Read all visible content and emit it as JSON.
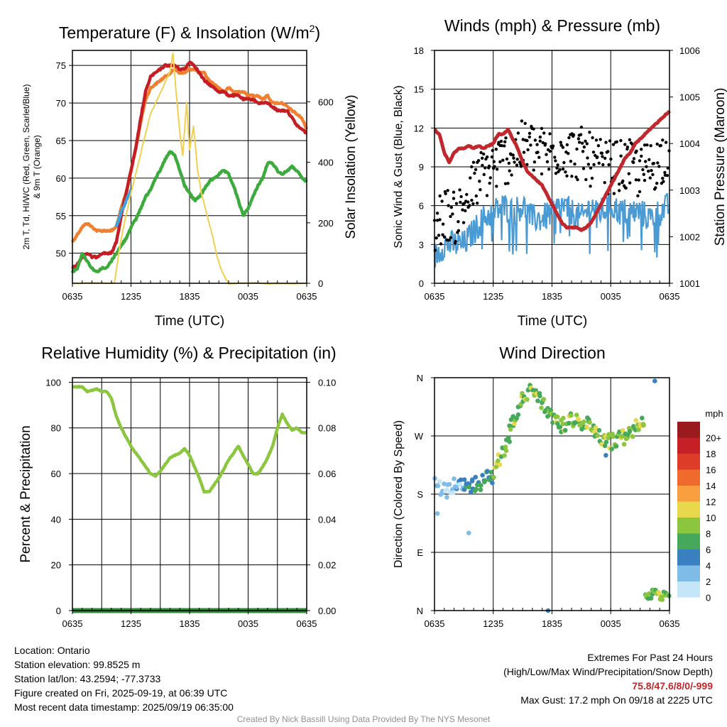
{
  "chart_data": [
    {
      "type": "line",
      "title": "Temperature (F) & Insolation (W/m²)",
      "title_main": "Temperature (F) & Insolation (W/m",
      "title_sup": "2",
      "title_end": ")",
      "xlabel": "Time (UTC)",
      "ylabel_left_line1": "2m T, Td, HI/WC (Red, Green, Scarlet/Blue)",
      "ylabel_left_line2": "& 9m T (Orange)",
      "ylabel_right": "Solar Insolation (Yellow)",
      "x_ticks": [
        "0635",
        "1235",
        "1835",
        "0035",
        "0635"
      ],
      "ylim_left": [
        46,
        77
      ],
      "y_ticks_left": [
        50,
        55,
        60,
        65,
        70,
        75
      ],
      "ylim_right": [
        0,
        770
      ],
      "y_ticks_right": [
        0,
        200,
        400,
        600
      ],
      "series": [
        {
          "color": "#f08030",
          "axis": "left",
          "x": [
            0,
            0.5,
            1,
            1.5,
            2,
            2.5,
            3,
            3.5,
            4,
            4.5,
            5,
            5.5,
            6,
            6.5,
            7,
            7.5,
            8,
            8.5,
            9,
            9.5,
            10,
            10.5,
            11,
            11.5,
            12,
            12.5,
            13,
            13.5,
            14,
            14.5,
            15,
            15.5,
            16,
            16.5,
            17,
            17.5,
            18,
            18.5,
            19,
            19.5,
            20,
            20.5,
            21,
            21.5,
            22,
            22.5,
            23,
            23.5,
            24
          ],
          "y": [
            51.5,
            52.5,
            53.5,
            54,
            53.5,
            53,
            53,
            53,
            53,
            53.5,
            56,
            58,
            61,
            64,
            67.5,
            70.5,
            72,
            72.5,
            73,
            73.5,
            74,
            74.5,
            74,
            74,
            74.5,
            74.5,
            74,
            74,
            73,
            72.5,
            72,
            71.5,
            72,
            71.5,
            71.5,
            71.5,
            71,
            71,
            71,
            70.5,
            71,
            70,
            70,
            70,
            69.5,
            69,
            68.5,
            68,
            66.5
          ]
        },
        {
          "color": "#c41e24",
          "axis": "left",
          "x": [
            0,
            0.5,
            1,
            1.5,
            2,
            2.5,
            3,
            3.5,
            4,
            4.5,
            5,
            5.5,
            6,
            6.5,
            7,
            7.5,
            8,
            8.5,
            9,
            9.5,
            10,
            10.5,
            11,
            11.5,
            12,
            12.5,
            13,
            13.5,
            14,
            14.5,
            15,
            15.5,
            16,
            16.5,
            17,
            17.5,
            18,
            18.5,
            19,
            19.5,
            20,
            20.5,
            21,
            21.5,
            22,
            22.5,
            23,
            23.5,
            24
          ],
          "y": [
            48,
            48.5,
            49.5,
            50,
            49.5,
            49.5,
            50,
            50,
            50,
            51.5,
            55,
            58,
            61,
            64,
            68,
            71.5,
            73.5,
            74,
            74.5,
            75,
            75,
            75,
            74.5,
            74.5,
            75.5,
            75,
            74,
            73,
            72.5,
            72,
            71.5,
            71.5,
            71,
            71,
            71,
            70.5,
            70.5,
            70.5,
            70,
            70,
            70,
            69.5,
            69,
            69,
            69,
            68,
            67,
            66.5,
            66
          ]
        },
        {
          "color": "#3f9fd8",
          "axis": "left",
          "x": [
            4.5,
            5,
            5.5,
            6
          ],
          "y": [
            53.5,
            55.5,
            57,
            58.5
          ]
        },
        {
          "color": "#3caa3c",
          "axis": "left",
          "x": [
            0,
            0.5,
            1,
            1.5,
            2,
            2.5,
            3,
            3.5,
            4,
            4.5,
            5,
            5.5,
            6,
            6.5,
            7,
            7.5,
            8,
            8.5,
            9,
            9.5,
            10,
            10.5,
            11,
            11.5,
            12,
            12.5,
            13,
            13.5,
            14,
            14.5,
            15,
            15.5,
            16,
            16.5,
            17,
            17.5,
            18,
            18.5,
            19,
            19.5,
            20,
            20.5,
            21,
            21.5,
            22,
            22.5,
            23,
            23.5,
            24
          ],
          "y": [
            47.5,
            48,
            50,
            49,
            48,
            47.5,
            48,
            48,
            49,
            50,
            51,
            52,
            53.5,
            54.5,
            56,
            57.5,
            58.5,
            60,
            61,
            62.5,
            63.5,
            63,
            61,
            59,
            58,
            57,
            57.5,
            58.5,
            59.5,
            60,
            60.5,
            61,
            60.5,
            59,
            57,
            55,
            56,
            57.5,
            59,
            60,
            62,
            62,
            61,
            60.5,
            61,
            61.5,
            61,
            60,
            59.5
          ]
        },
        {
          "color": "#f0d050",
          "axis": "right",
          "x": [
            0,
            4.3,
            5,
            6,
            7,
            8,
            9,
            10,
            10.3,
            10.6,
            11,
            11.3,
            11.7,
            12,
            12.4,
            12.8,
            13.2,
            13.6,
            14,
            14.4,
            14.8,
            15.2,
            15.6,
            16,
            24
          ],
          "y": [
            0,
            0,
            150,
            300,
            430,
            560,
            630,
            700,
            760,
            640,
            500,
            420,
            600,
            440,
            520,
            380,
            300,
            250,
            200,
            150,
            90,
            50,
            20,
            0,
            0
          ]
        }
      ]
    },
    {
      "type": "line",
      "title": "Winds (mph) & Pressure (mb)",
      "xlabel": "Time (UTC)",
      "ylabel_left": "Sonic Wind & Gust (Blue, Black)",
      "ylabel_right": "Station Pressure (Maroon)",
      "x_ticks": [
        "0635",
        "1235",
        "1835",
        "0035",
        "0635"
      ],
      "ylim_left": [
        0,
        18
      ],
      "y_ticks_left": [
        0,
        3,
        6,
        9,
        12,
        15,
        18
      ],
      "ylim_right": [
        1001,
        1006
      ],
      "y_ticks_right": [
        1001,
        1002,
        1003,
        1004,
        1005,
        1006
      ],
      "series": [
        {
          "name": "",
          "color": "#c0282d",
          "axis": "right",
          "x": [
            0,
            0.5,
            1,
            1.5,
            2,
            2.5,
            3,
            3.5,
            4,
            4.5,
            5,
            5.5,
            6,
            6.5,
            7,
            7.5,
            8,
            8.5,
            9,
            9.5,
            10,
            10.5,
            11,
            11.5,
            12,
            12.5,
            13,
            13.5,
            14,
            14.5,
            15,
            15.5,
            16,
            16.5,
            17,
            17.5,
            18,
            18.5,
            19,
            19.5,
            20,
            20.5,
            21,
            21.5,
            22,
            22.5,
            23,
            23.5,
            24
          ],
          "y": [
            1004.3,
            1004.2,
            1003.8,
            1003.6,
            1003.8,
            1003.9,
            1003.9,
            1003.95,
            1003.9,
            1003.95,
            1003.9,
            1003.95,
            1004.0,
            1004.2,
            1004.2,
            1004.3,
            1004.1,
            1003.9,
            1003.6,
            1003.4,
            1003.3,
            1003.2,
            1003.1,
            1002.9,
            1002.7,
            1002.5,
            1002.3,
            1002.2,
            1002.2,
            1002.2,
            1002.15,
            1002.2,
            1002.3,
            1002.5,
            1002.7,
            1002.9,
            1003.1,
            1003.3,
            1003.5,
            1003.7,
            1003.8,
            1004.0,
            1004.1,
            1004.2,
            1004.3,
            1004.4,
            1004.5,
            1004.6,
            1004.7
          ]
        }
      ],
      "wind_base": [
        {
          "x": 0,
          "y": 2
        },
        {
          "x": 1,
          "y": 3
        },
        {
          "x": 2,
          "y": 3
        },
        {
          "x": 3,
          "y": 3
        },
        {
          "x": 4,
          "y": 4
        },
        {
          "x": 5,
          "y": 5
        },
        {
          "x": 6,
          "y": 5.5
        },
        {
          "x": 7,
          "y": 6
        },
        {
          "x": 8,
          "y": 5.5
        },
        {
          "x": 9,
          "y": 6
        },
        {
          "x": 10,
          "y": 5
        },
        {
          "x": 11,
          "y": 5
        },
        {
          "x": 12,
          "y": 5.5
        },
        {
          "x": 13,
          "y": 6
        },
        {
          "x": 14,
          "y": 5.5
        },
        {
          "x": 15,
          "y": 5
        },
        {
          "x": 16,
          "y": 6
        },
        {
          "x": 17,
          "y": 5.5
        },
        {
          "x": 18,
          "y": 6
        },
        {
          "x": 19,
          "y": 5.5
        },
        {
          "x": 20,
          "y": 5.5
        },
        {
          "x": 21,
          "y": 5.5
        },
        {
          "x": 22,
          "y": 5
        },
        {
          "x": 23,
          "y": 5.5
        },
        {
          "x": 24,
          "y": 6
        }
      ],
      "gust_base": [
        {
          "x": 0,
          "y": 4
        },
        {
          "x": 1,
          "y": 5.5
        },
        {
          "x": 2,
          "y": 5
        },
        {
          "x": 3,
          "y": 6
        },
        {
          "x": 4,
          "y": 7.5
        },
        {
          "x": 5,
          "y": 8.5
        },
        {
          "x": 6,
          "y": 9
        },
        {
          "x": 7,
          "y": 9.5
        },
        {
          "x": 8,
          "y": 10
        },
        {
          "x": 9,
          "y": 10.5
        },
        {
          "x": 10,
          "y": 10.5
        },
        {
          "x": 11,
          "y": 10
        },
        {
          "x": 12,
          "y": 10
        },
        {
          "x": 13,
          "y": 10.5
        },
        {
          "x": 14,
          "y": 10
        },
        {
          "x": 15,
          "y": 10
        },
        {
          "x": 16,
          "y": 9.5
        },
        {
          "x": 17,
          "y": 9
        },
        {
          "x": 18,
          "y": 9
        },
        {
          "x": 19,
          "y": 9
        },
        {
          "x": 20,
          "y": 9
        },
        {
          "x": 21,
          "y": 8.5
        },
        {
          "x": 22,
          "y": 9
        },
        {
          "x": 23,
          "y": 9.5
        },
        {
          "x": 24,
          "y": 10.5
        }
      ]
    },
    {
      "type": "line",
      "title": "Relative Humidity (%) & Precipitation (in)",
      "xlabel": "",
      "ylabel_left": "Percent & Precipitation",
      "x_ticks": [
        "0635",
        "1235",
        "1835",
        "0035",
        "0635"
      ],
      "ylim_left": [
        0,
        102
      ],
      "y_ticks_left": [
        0,
        20,
        40,
        60,
        80,
        100
      ],
      "ylim_right": [
        0,
        0.102
      ],
      "y_ticks_right": [
        "0.00",
        "0.02",
        "0.04",
        "0.06",
        "0.08",
        "0.10"
      ],
      "series": [
        {
          "color": "#8cc63f",
          "axis": "left",
          "x": [
            0,
            0.5,
            1,
            1.5,
            2,
            2.5,
            3,
            3.5,
            4,
            4.5,
            5,
            5.5,
            6,
            6.5,
            7,
            7.5,
            8,
            8.5,
            9,
            9.5,
            10,
            10.5,
            11,
            11.5,
            12,
            12.5,
            13,
            13.5,
            14,
            14.5,
            15,
            15.5,
            16,
            16.5,
            17,
            17.5,
            18,
            18.5,
            19,
            19.5,
            20,
            20.5,
            21,
            21.5,
            22,
            22.5,
            23,
            23.5,
            24
          ],
          "y": [
            98,
            98,
            98,
            96,
            96.5,
            97,
            96,
            96,
            93,
            85,
            80,
            76,
            72,
            69,
            66,
            63,
            60,
            59,
            61,
            64,
            67,
            68,
            69,
            71,
            68,
            63,
            58,
            52,
            52,
            55,
            58,
            62,
            66,
            69,
            72,
            68,
            64,
            60,
            60,
            63,
            67,
            72,
            80,
            86,
            82,
            79,
            80,
            78,
            78
          ]
        },
        {
          "color": "#2e8b3a",
          "axis": "left",
          "x": [
            0,
            24
          ],
          "y": [
            0,
            0
          ]
        }
      ]
    },
    {
      "type": "scatter",
      "title": "Wind Direction",
      "ylabel_left": "Direction (Colored By Speed)",
      "x_ticks": [
        "0635",
        "1235",
        "1835",
        "0035",
        "0635"
      ],
      "y_ticks": [
        "N",
        "E",
        "S",
        "W",
        "N"
      ],
      "ylim": [
        0,
        360
      ],
      "colorbar": {
        "unit": "mph",
        "labels": [
          "20+",
          "18",
          "16",
          "14",
          "12",
          "10",
          "8",
          "6",
          "4",
          "2",
          "0"
        ],
        "colors": [
          "#9a1b1e",
          "#c42026",
          "#dc3c28",
          "#f06a2e",
          "#f8a040",
          "#e8d84c",
          "#8cc63f",
          "#45a85a",
          "#3a80c0",
          "#80bce8",
          "#c4e6f8"
        ]
      },
      "path": [
        {
          "x": 0,
          "y": 200
        },
        {
          "x": 1,
          "y": 185
        },
        {
          "x": 2,
          "y": 195
        },
        {
          "x": 3,
          "y": 190
        },
        {
          "x": 4,
          "y": 195
        },
        {
          "x": 5,
          "y": 200
        },
        {
          "x": 6,
          "y": 210
        },
        {
          "x": 7,
          "y": 245
        },
        {
          "x": 8,
          "y": 290
        },
        {
          "x": 9,
          "y": 325
        },
        {
          "x": 10,
          "y": 345
        },
        {
          "x": 11,
          "y": 320
        },
        {
          "x": 12,
          "y": 300
        },
        {
          "x": 13,
          "y": 285
        },
        {
          "x": 14,
          "y": 295
        },
        {
          "x": 15,
          "y": 290
        },
        {
          "x": 16,
          "y": 285
        },
        {
          "x": 17,
          "y": 265
        },
        {
          "x": 18,
          "y": 260
        },
        {
          "x": 19,
          "y": 265
        },
        {
          "x": 20,
          "y": 275
        },
        {
          "x": 21,
          "y": 290
        },
        {
          "x": 22,
          "y": 18
        },
        {
          "x": 23,
          "y": 25
        },
        {
          "x": 24,
          "y": 22
        }
      ],
      "outliers": [
        {
          "x": 3.5,
          "y": 120
        },
        {
          "x": 0.3,
          "y": 150
        },
        {
          "x": 11.6,
          "y": 0
        },
        {
          "x": 17.5,
          "y": 240
        },
        {
          "x": 22.5,
          "y": 355
        }
      ]
    }
  ],
  "info": {
    "location": "Location: Ontario",
    "elevation": "Station elevation: 99.8525 m",
    "latlon": "Station lat/lon: 43.2594; -77.3733",
    "created": "Figure created on Fri, 2025-09-19, at 06:39 UTC",
    "recent": "Most recent data timestamp: 2025/09/19 06:35:00"
  },
  "extremes": {
    "title": "Extremes For Past 24 Hours",
    "subtitle": "(High/Low/Max Wind/Precipitation/Snow Depth)",
    "values": "75.8/47.6/8/0/-999",
    "gust": "Max Gust: 17.2 mph On 09/18 at 2225 UTC"
  },
  "credit": "Created By Nick Bassill Using Data Provided By The NYS Mesonet"
}
